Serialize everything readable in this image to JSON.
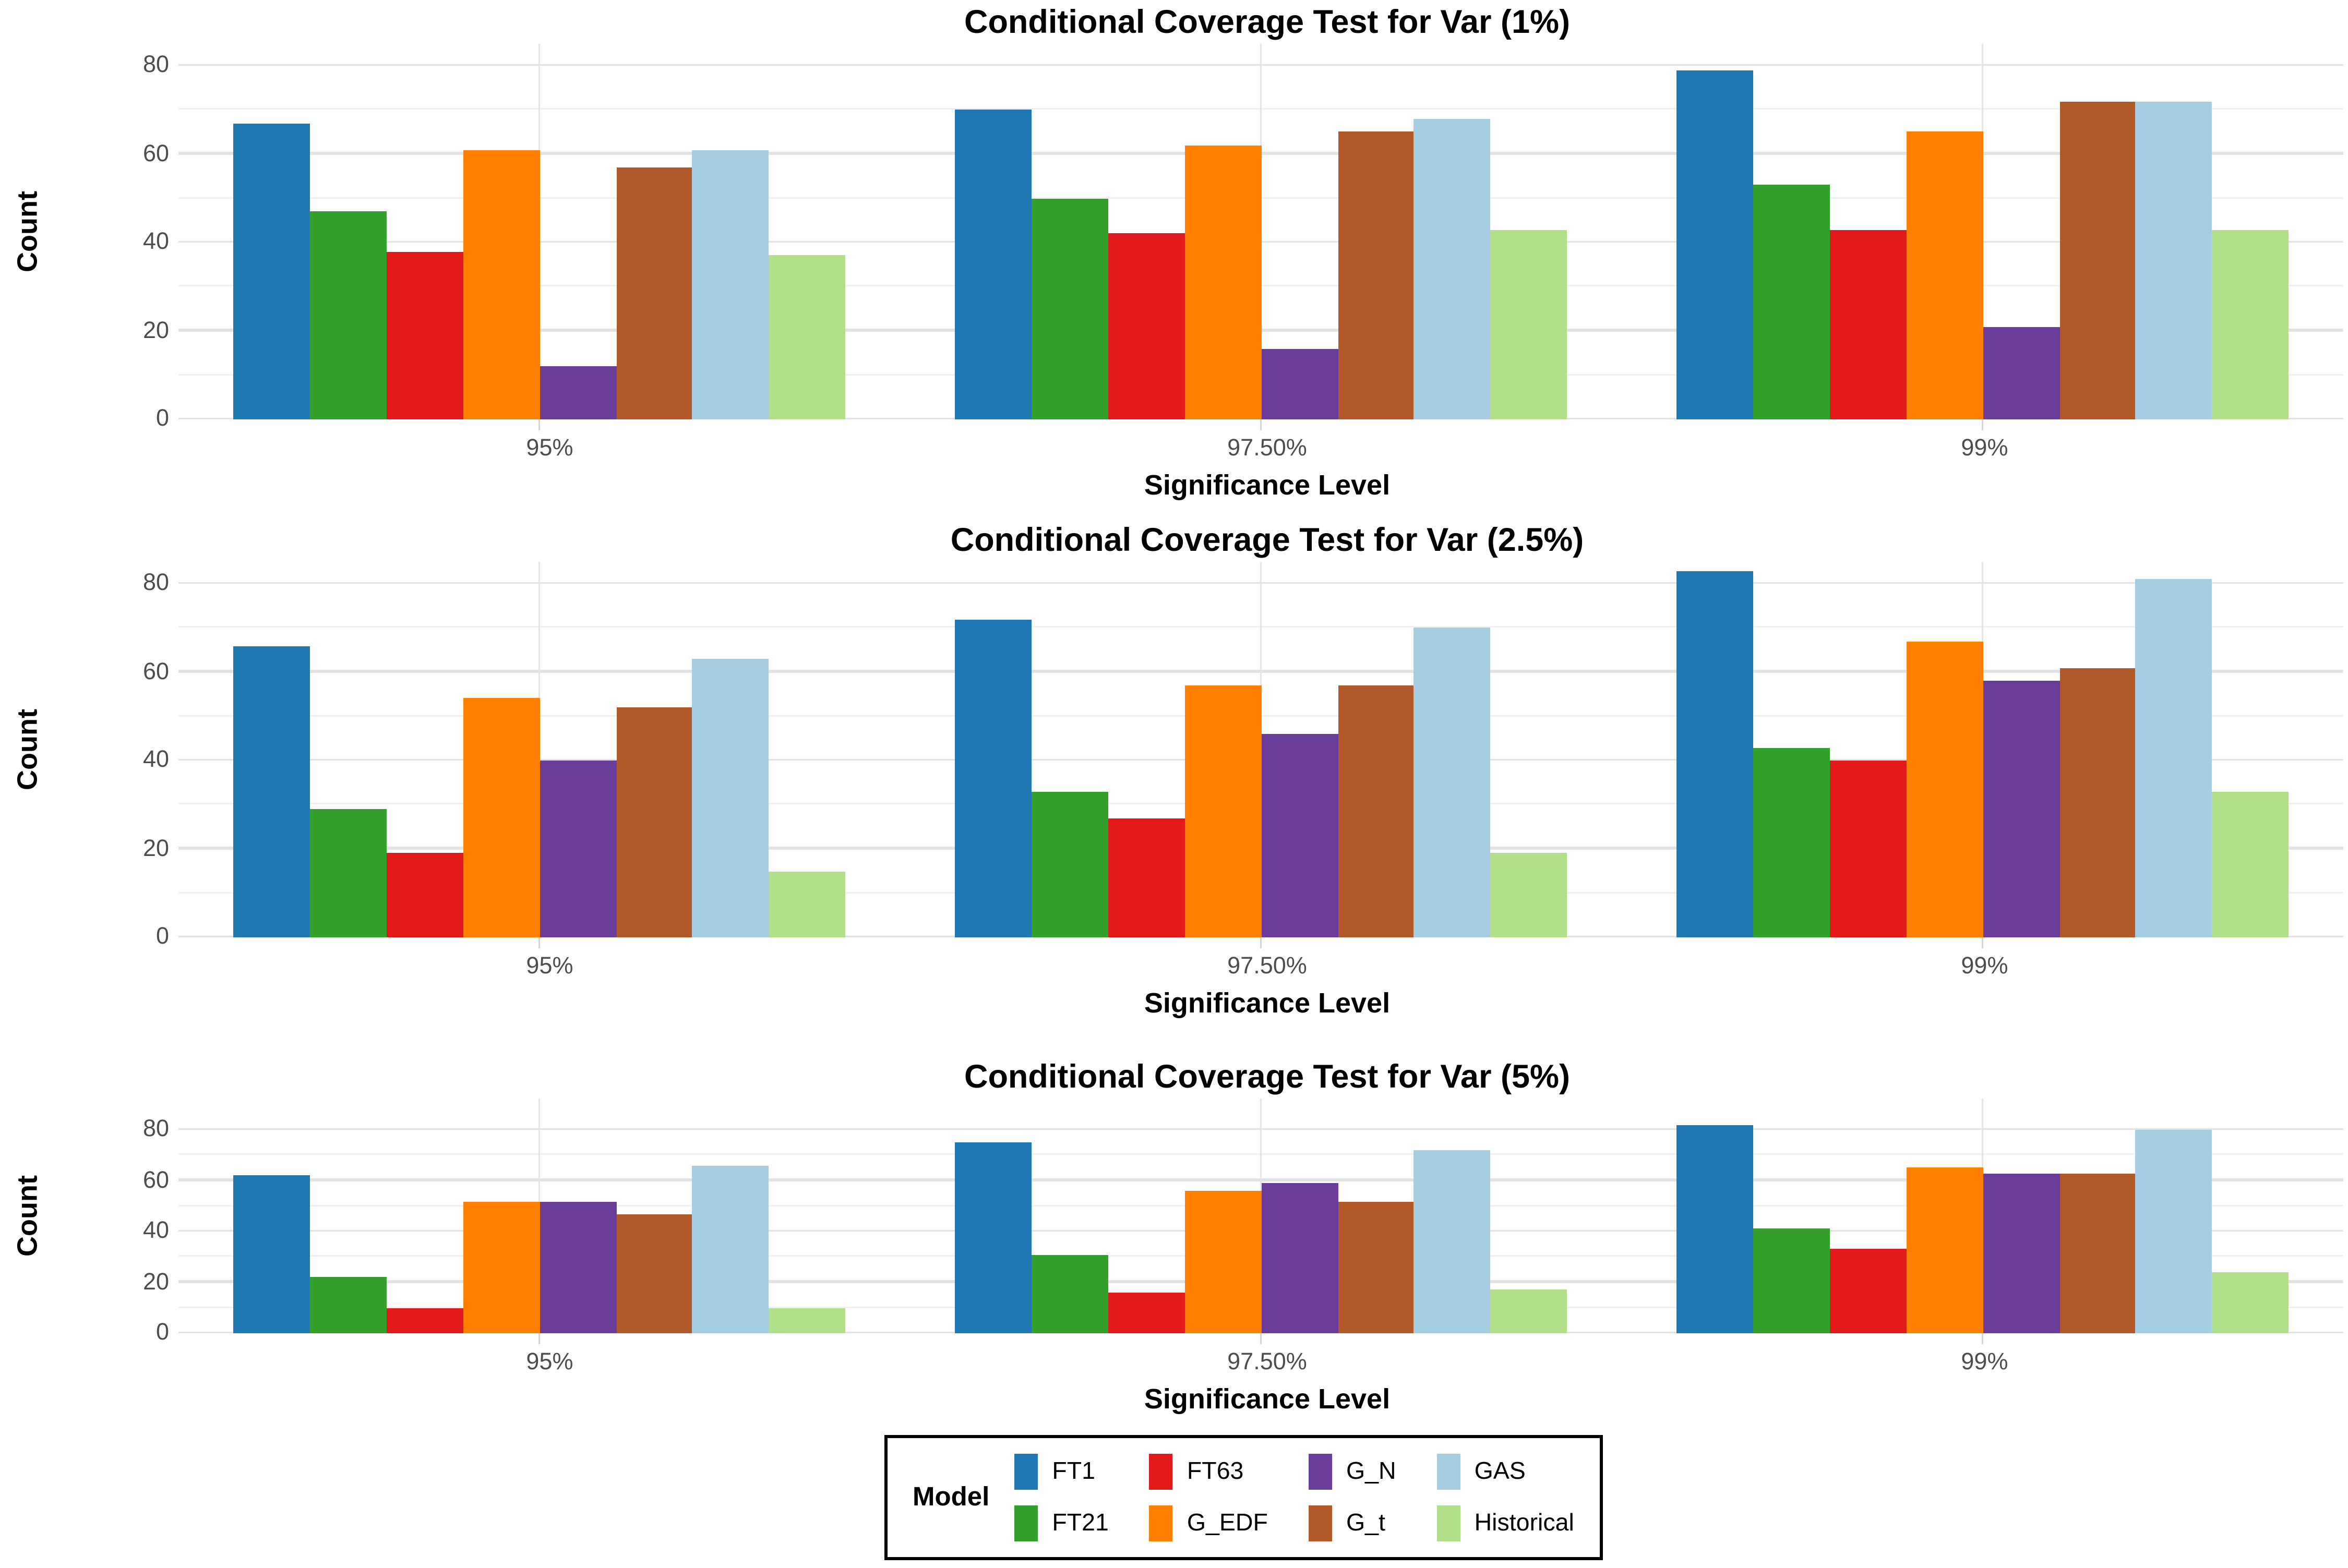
{
  "figure": {
    "background": "#ffffff",
    "text_color": "#000000",
    "tick_label_color": "#4d4d4d",
    "gridline_color": "#e2e2e2"
  },
  "legend": {
    "title": "Model",
    "entries": [
      {
        "label": "FT1",
        "color": "#1F78B4"
      },
      {
        "label": "FT21",
        "color": "#33A02C"
      },
      {
        "label": "FT63",
        "color": "#E31A1C"
      },
      {
        "label": "G_EDF",
        "color": "#FF7F00"
      },
      {
        "label": "G_N",
        "color": "#6A3D9A"
      },
      {
        "label": "G_t",
        "color": "#B15928"
      },
      {
        "label": "GAS",
        "color": "#A6CEE3"
      },
      {
        "label": "Historical",
        "color": "#B2DF8A"
      }
    ]
  },
  "chart_data": [
    {
      "type": "bar",
      "title": "Conditional Coverage Test for Var (1%)",
      "xlabel": "Significance Level",
      "ylabel": "Count",
      "ylim": [
        0,
        80
      ],
      "yticks": [
        0,
        20,
        40,
        60,
        80
      ],
      "grid": "major and minor horizontal, vertical at category centers",
      "legend_position": "shared bottom",
      "categories": [
        "95%",
        "97.50%",
        "99%"
      ],
      "series": [
        {
          "name": "FT1",
          "color": "#1F78B4",
          "values": [
            67,
            70,
            79
          ]
        },
        {
          "name": "FT21",
          "color": "#33A02C",
          "values": [
            47,
            50,
            53
          ]
        },
        {
          "name": "FT63",
          "color": "#E31A1C",
          "values": [
            38,
            42,
            43
          ]
        },
        {
          "name": "G_EDF",
          "color": "#FF7F00",
          "values": [
            61,
            62,
            65
          ]
        },
        {
          "name": "G_N",
          "color": "#6A3D9A",
          "values": [
            12,
            16,
            21
          ]
        },
        {
          "name": "G_t",
          "color": "#B15928",
          "values": [
            57,
            65,
            72
          ]
        },
        {
          "name": "GAS",
          "color": "#A6CEE3",
          "values": [
            61,
            68,
            72
          ]
        },
        {
          "name": "Historical",
          "color": "#B2DF8A",
          "values": [
            37,
            43,
            43
          ]
        }
      ]
    },
    {
      "type": "bar",
      "title": "Conditional Coverage Test for Var (2.5%)",
      "xlabel": "Significance Level",
      "ylabel": "Count",
      "ylim": [
        0,
        80
      ],
      "yticks": [
        0,
        20,
        40,
        60,
        80
      ],
      "grid": "major and minor horizontal, vertical at category centers",
      "legend_position": "shared bottom",
      "categories": [
        "95%",
        "97.50%",
        "99%"
      ],
      "series": [
        {
          "name": "FT1",
          "color": "#1F78B4",
          "values": [
            66,
            72,
            83
          ]
        },
        {
          "name": "FT21",
          "color": "#33A02C",
          "values": [
            29,
            33,
            43
          ]
        },
        {
          "name": "FT63",
          "color": "#E31A1C",
          "values": [
            19,
            27,
            40
          ]
        },
        {
          "name": "G_EDF",
          "color": "#FF7F00",
          "values": [
            54,
            57,
            67
          ]
        },
        {
          "name": "G_N",
          "color": "#6A3D9A",
          "values": [
            40,
            46,
            58
          ]
        },
        {
          "name": "G_t",
          "color": "#B15928",
          "values": [
            52,
            57,
            61
          ]
        },
        {
          "name": "GAS",
          "color": "#A6CEE3",
          "values": [
            63,
            70,
            81
          ]
        },
        {
          "name": "Historical",
          "color": "#B2DF8A",
          "values": [
            15,
            19,
            33
          ]
        }
      ]
    },
    {
      "type": "bar",
      "title": "Conditional Coverage Test for Var (5%)",
      "xlabel": "Significance Level",
      "ylabel": "Count",
      "ylim": [
        0,
        80
      ],
      "yticks": [
        0,
        20,
        40,
        60,
        80
      ],
      "grid": "major and minor horizontal, vertical at category centers",
      "legend_position": "shared bottom",
      "categories": [
        "95%",
        "97.50%",
        "99%"
      ],
      "series": [
        {
          "name": "FT1",
          "color": "#1F78B4",
          "values": [
            62,
            75,
            82
          ]
        },
        {
          "name": "FT21",
          "color": "#33A02C",
          "values": [
            22,
            31,
            41
          ]
        },
        {
          "name": "FT63",
          "color": "#E31A1C",
          "values": [
            10,
            16,
            33
          ]
        },
        {
          "name": "G_EDF",
          "color": "#FF7F00",
          "values": [
            52,
            56,
            65
          ]
        },
        {
          "name": "G_N",
          "color": "#6A3D9A",
          "values": [
            52,
            59,
            63
          ]
        },
        {
          "name": "G_t",
          "color": "#B15928",
          "values": [
            47,
            52,
            63
          ]
        },
        {
          "name": "GAS",
          "color": "#A6CEE3",
          "values": [
            66,
            72,
            80
          ]
        },
        {
          "name": "Historical",
          "color": "#B2DF8A",
          "values": [
            10,
            17,
            24
          ]
        }
      ]
    }
  ]
}
